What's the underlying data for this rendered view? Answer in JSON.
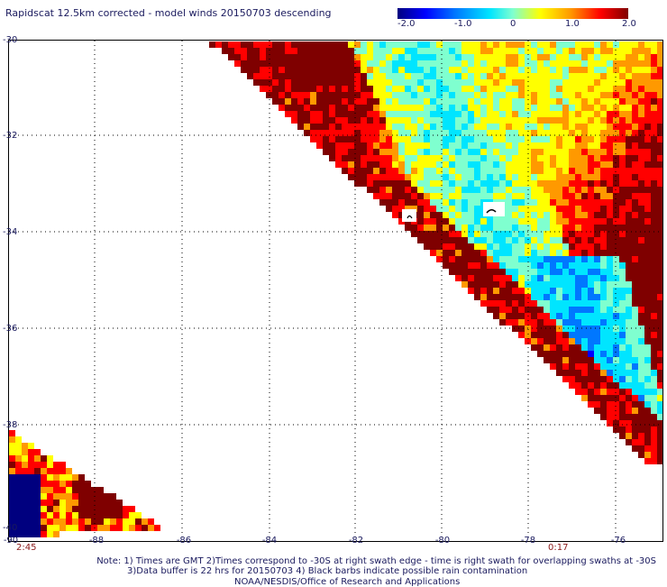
{
  "title": "Rapidscat 12.5km corrected - model winds 20150703 descending",
  "colorbar": {
    "ticks": [
      "-2.0",
      "-1.0",
      "0",
      "1.0",
      "2.0"
    ],
    "range": [
      -2.0,
      2.0
    ],
    "colors": [
      "#00007f",
      "#0000ff",
      "#0077ff",
      "#00e5ff",
      "#7fffcf",
      "#ffff00",
      "#ff9900",
      "#ff0000",
      "#7f0000"
    ]
  },
  "map": {
    "lat_labels": [
      "-30",
      "-32",
      "-34",
      "-36",
      "-38",
      "-40"
    ],
    "lon_labels": [
      "-90",
      "-88",
      "-86",
      "-84",
      "-82",
      "-80",
      "-78",
      "-76"
    ],
    "lat_range": [
      -40,
      -30
    ],
    "lon_range": [
      -90,
      -75
    ],
    "grid_style": "dotted"
  },
  "times": {
    "left": "2:45",
    "right": "0:17"
  },
  "notes": {
    "line1": "Note: 1) Times are GMT 2)Times correspond to -30S at right swath edge - time is right swath for overlapping swaths at -30S",
    "line2": "3)Data buffer is 22 hrs for 20150703 4) Black barbs indicate possible rain contamination",
    "line3": "NOAA/NESDIS/Office of Research and Applications"
  }
}
